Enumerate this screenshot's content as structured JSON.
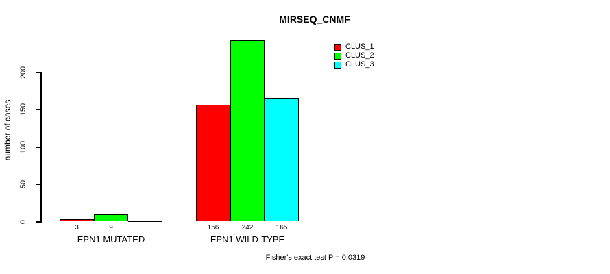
{
  "colors": {
    "background": "#ffffff",
    "axis": "#000000",
    "text": "#000000"
  },
  "chart_data": {
    "type": "bar",
    "title": "MIRSEQ_CNMF",
    "xlabel": "",
    "ylabel": "number of cases",
    "categories": [
      "EPN1 MUTATED",
      "EPN1 WILD-TYPE"
    ],
    "series": [
      {
        "name": "CLUS_1",
        "color": "#ff0000",
        "values": [
          3,
          156
        ]
      },
      {
        "name": "CLUS_2",
        "color": "#00ff00",
        "values": [
          9,
          242
        ]
      },
      {
        "name": "CLUS_3",
        "color": "#00ffff",
        "values": [
          0,
          165
        ]
      }
    ],
    "bar_value_labels": [
      [
        "3",
        "9",
        ""
      ],
      [
        "156",
        "242",
        "165"
      ]
    ],
    "ylim": [
      0,
      242
    ],
    "yticks": [
      0,
      50,
      100,
      150,
      200
    ],
    "grid": false,
    "legend_position": "top-right",
    "legend_entries": [
      "CLUS_1",
      "CLUS_2",
      "CLUS_3"
    ],
    "annotation": "Fisher's exact test P = 0.0319"
  }
}
